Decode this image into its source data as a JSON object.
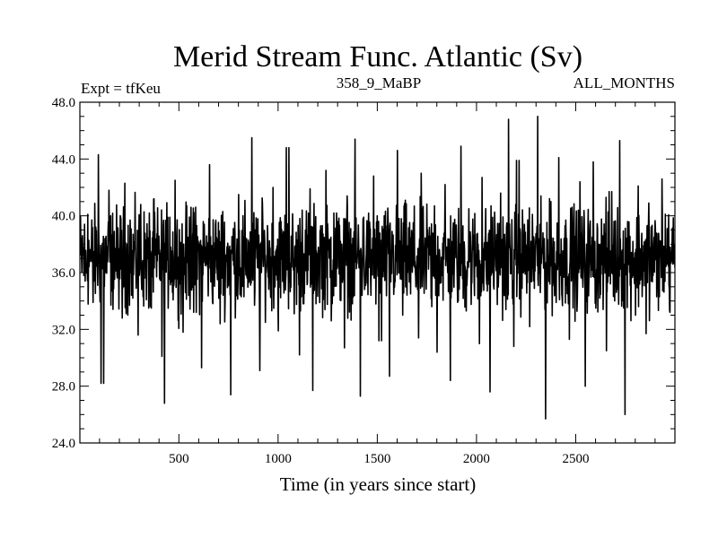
{
  "chart_data": {
    "type": "line",
    "title": "Merid Stream Func. Atlantic (Sv)",
    "subtitle_left": "Expt = tfKeu",
    "subtitle_center": "358_9_MaBP",
    "subtitle_right": "ALL_MONTHS",
    "xlabel": "Time (in years since start)",
    "ylabel": "",
    "xlim": [
      1,
      3000
    ],
    "ylim": [
      24.0,
      48.0
    ],
    "xticks": [
      500,
      1000,
      1500,
      2000,
      2500
    ],
    "yticks": [
      "24.0",
      "28.0",
      "32.0",
      "36.0",
      "40.0",
      "44.0",
      "48.0"
    ],
    "series": [
      {
        "color": "#000000",
        "x_start": 1,
        "x_end": 3000,
        "mean": 37.0,
        "typical_range": [
          33.0,
          41.0
        ],
        "values": [
          37.2,
          38.6,
          35.4,
          40.1,
          36.8,
          33.9,
          39.2,
          44.3,
          28.2,
          36.5,
          41.8,
          34.7,
          38.9,
          35.9,
          37.6,
          32.8,
          42.3,
          36.1,
          39.7,
          34.2,
          37.9,
          31.6,
          40.8,
          36.4,
          38.3,
          33.5,
          41.2,
          35.7,
          37.4,
          30.1,
          26.8,
          36.9,
          39.9,
          34.6,
          42.5,
          37.1,
          35.2,
          31.8,
          38.7,
          36.3,
          40.6,
          33.2,
          37.8,
          29.3,
          39.4,
          36.6,
          43.6,
          34.9,
          38.1,
          35.5,
          32.4,
          40.3,
          36.2,
          37.7,
          27.4,
          39.1,
          35.8,
          41.5,
          34.3,
          38.4,
          36.7,
          45.5,
          33.7,
          37.3,
          29.1,
          40.9,
          36.0,
          38.8,
          34.8,
          42.0,
          37.5,
          31.9,
          39.6,
          35.6,
          44.8,
          36.4,
          33.1,
          38.2,
          30.2,
          40.4,
          37.0,
          35.3,
          41.9,
          27.7,
          38.5,
          36.1,
          39.3,
          34.1,
          43.2,
          37.6,
          32.6,
          40.2,
          35.9,
          38.0,
          30.7,
          41.4,
          36.8,
          33.8,
          45.4,
          37.2,
          27.3,
          39.8,
          35.1,
          38.6,
          34.4,
          42.8,
          36.3,
          31.2,
          40.0,
          37.4,
          28.7,
          38.9,
          35.4,
          44.6,
          36.7,
          33.0,
          41.1,
          37.9,
          34.5,
          39.5,
          35.0,
          31.4,
          43.0,
          36.5,
          38.3,
          33.6,
          40.7,
          30.4,
          37.1,
          35.8,
          42.2,
          36.0,
          28.4,
          39.0,
          37.7,
          34.0,
          44.9,
          36.2,
          33.3,
          40.5,
          35.5,
          38.7,
          31.0,
          42.7,
          36.9,
          34.7,
          27.6,
          39.9,
          37.3,
          35.2,
          41.6,
          38.1,
          33.4,
          46.8,
          36.6,
          30.8,
          43.9,
          35.7,
          39.4,
          37.5,
          32.2,
          40.1,
          36.1,
          47.0,
          34.6,
          38.8,
          25.7,
          37.0,
          41.0,
          35.3,
          33.9,
          44.1,
          36.4,
          38.4,
          31.3,
          40.6,
          37.8,
          34.2,
          42.4,
          35.6,
          28.0,
          39.2,
          36.8,
          43.8,
          33.5,
          38.0,
          35.9,
          37.2,
          30.5,
          41.7,
          36.3,
          34.8,
          45.3,
          37.6,
          26.0,
          39.6,
          35.1,
          38.2,
          33.0,
          42.1,
          36.5,
          37.9,
          31.7,
          40.9,
          35.4,
          38.5,
          34.3,
          42.6,
          36.0,
          39.1,
          33.2,
          37.4,
          41.3
        ]
      }
    ],
    "grid": false,
    "legend": "none"
  }
}
